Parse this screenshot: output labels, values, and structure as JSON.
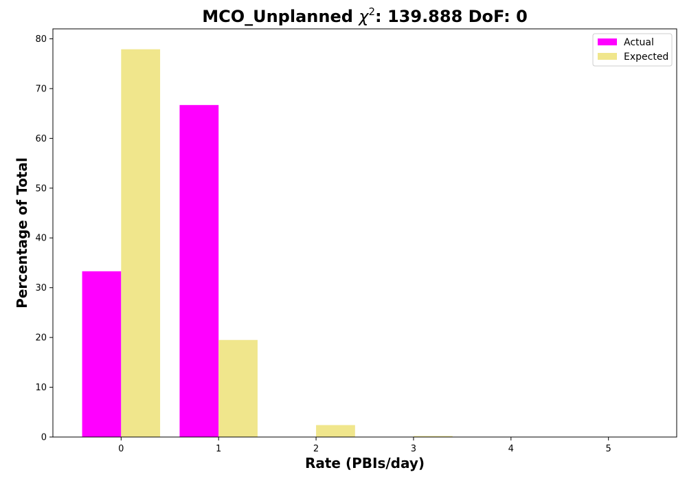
{
  "chart_data": {
    "type": "bar",
    "title_prefix": "MCO_Unplanned ",
    "title_chi": "χ",
    "title_sup": "2",
    "title_suffix": ": 139.888 DoF: 0",
    "xlabel": "Rate (PBIs/day)",
    "ylabel": "Percentage of Total",
    "categories": [
      "0",
      "1",
      "2",
      "3",
      "4",
      "5"
    ],
    "x": [
      0,
      1,
      2,
      3,
      4,
      5
    ],
    "xlim": [
      -0.7,
      5.7
    ],
    "ylim": [
      0,
      82
    ],
    "yticks": [
      0,
      10,
      20,
      30,
      40,
      50,
      60,
      70,
      80
    ],
    "grid": false,
    "legend_position": "top-right",
    "series": [
      {
        "name": "Actual",
        "color": "#ff00ff",
        "values": [
          33.3,
          66.7,
          0,
          0,
          0,
          0
        ]
      },
      {
        "name": "Expected",
        "color": "#f0e68c",
        "values": [
          77.9,
          19.5,
          2.4,
          0.2,
          0,
          0
        ]
      }
    ]
  }
}
